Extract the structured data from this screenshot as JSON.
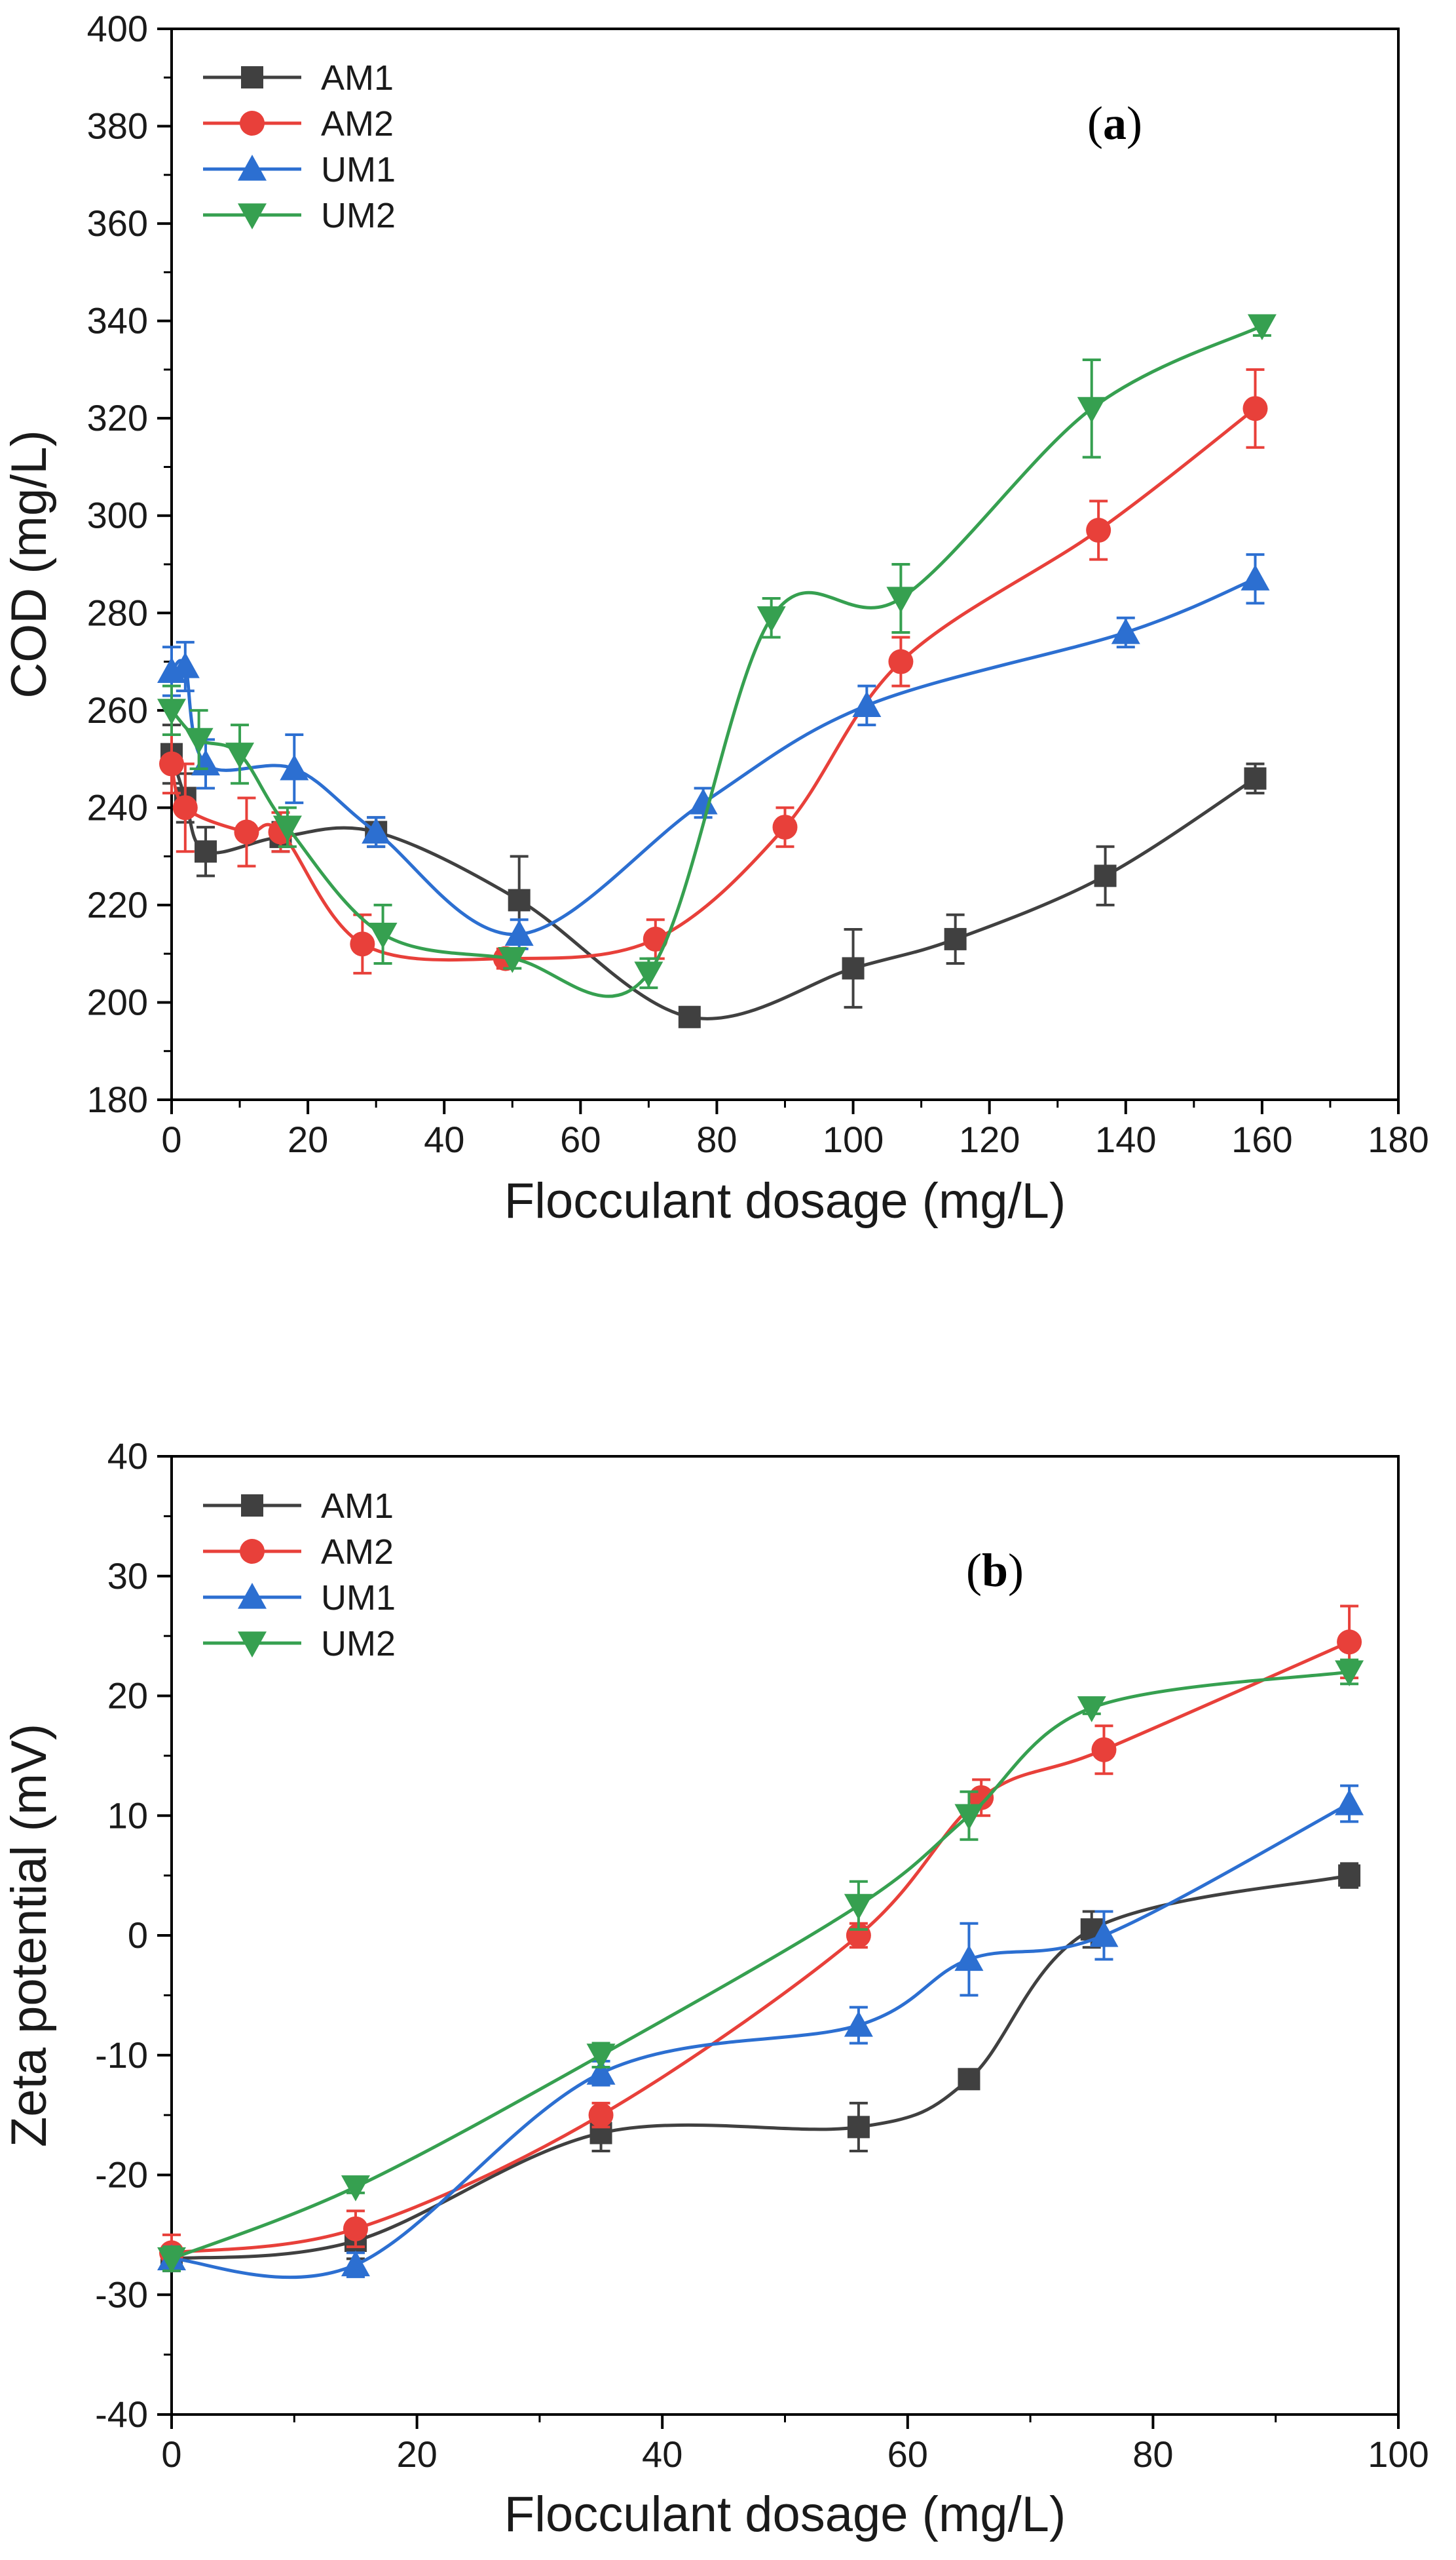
{
  "chart_data": [
    {
      "type": "line",
      "panel_label": "a",
      "xlabel": "Flocculant dosage (mg/L)",
      "ylabel": "COD (mg/L)",
      "xlim": [
        0,
        180
      ],
      "ylim": [
        180,
        400
      ],
      "xticks": [
        "0",
        "20",
        "40",
        "60",
        "80",
        "100",
        "120",
        "140",
        "160",
        "180"
      ],
      "yticks": [
        "180",
        "200",
        "220",
        "240",
        "260",
        "280",
        "300",
        "320",
        "340",
        "360",
        "380",
        "400"
      ],
      "legend_position": "top-left",
      "series": [
        {
          "name": "AM1",
          "color": "#404040",
          "marker": "square",
          "x": [
            0,
            2,
            5,
            16,
            30,
            51,
            76,
            100,
            115,
            137,
            159
          ],
          "y": [
            251,
            242,
            231,
            234,
            235,
            221,
            197,
            207,
            213,
            226,
            246
          ],
          "err": [
            6,
            5,
            5,
            3,
            3,
            9,
            2,
            8,
            5,
            6,
            3
          ]
        },
        {
          "name": "AM2",
          "color": "#e8403a",
          "marker": "circle",
          "x": [
            0,
            2,
            11,
            16,
            28,
            49,
            71,
            90,
            107,
            136,
            159
          ],
          "y": [
            249,
            240,
            235,
            235,
            212,
            209,
            213,
            236,
            270,
            297,
            322
          ],
          "err": [
            6,
            9,
            7,
            4,
            6,
            2,
            4,
            4,
            5,
            6,
            8
          ]
        },
        {
          "name": "UM1",
          "color": "#2c6fd1",
          "marker": "triangle-up",
          "x": [
            0,
            2,
            5,
            18,
            30,
            51,
            78,
            102,
            140,
            159
          ],
          "y": [
            268,
            269,
            249,
            248,
            235,
            214,
            241,
            261,
            276,
            287
          ],
          "err": [
            5,
            5,
            5,
            7,
            3,
            3,
            3,
            4,
            3,
            5
          ]
        },
        {
          "name": "UM2",
          "color": "#36a050",
          "marker": "triangle-down",
          "x": [
            0,
            4,
            10,
            17,
            31,
            50,
            70,
            88,
            107,
            135,
            160
          ],
          "y": [
            260,
            254,
            251,
            236,
            214,
            209,
            206,
            279,
            283,
            322,
            339
          ],
          "err": [
            5,
            6,
            6,
            4,
            6,
            2,
            3,
            4,
            7,
            10,
            2
          ]
        }
      ]
    },
    {
      "type": "line",
      "panel_label": "b",
      "xlabel": "Flocculant dosage (mg/L)",
      "ylabel": "Zeta potential (mV)",
      "xlim": [
        0,
        100
      ],
      "ylim": [
        -40,
        40
      ],
      "xticks": [
        "0",
        "20",
        "40",
        "60",
        "80",
        "100"
      ],
      "yticks": [
        "-40",
        "-30",
        "-20",
        "-10",
        "0",
        "10",
        "20",
        "30",
        "40"
      ],
      "legend_position": "top-left",
      "series": [
        {
          "name": "AM1",
          "color": "#404040",
          "marker": "square",
          "x": [
            0,
            15,
            35,
            56,
            65,
            75,
            96
          ],
          "y": [
            -27,
            -25.5,
            -16.5,
            -16,
            -12,
            0.5,
            5
          ],
          "err": [
            1,
            1.5,
            1.5,
            2,
            0.5,
            1.5,
            1
          ]
        },
        {
          "name": "AM2",
          "color": "#e8403a",
          "marker": "circle",
          "x": [
            0,
            15,
            35,
            56,
            66,
            76,
            96
          ],
          "y": [
            -26.5,
            -24.5,
            -15,
            0,
            11.5,
            15.5,
            24.5
          ],
          "err": [
            1.5,
            1.5,
            1,
            1,
            1.5,
            2,
            3
          ]
        },
        {
          "name": "UM1",
          "color": "#2c6fd1",
          "marker": "triangle-up",
          "x": [
            0,
            15,
            35,
            56,
            65,
            76,
            96
          ],
          "y": [
            -27,
            -27.5,
            -11.5,
            -7.5,
            -2,
            0,
            11
          ],
          "err": [
            1,
            1,
            1,
            1.5,
            3,
            2,
            1.5
          ]
        },
        {
          "name": "UM2",
          "color": "#36a050",
          "marker": "triangle-down",
          "x": [
            0,
            15,
            35,
            56,
            65,
            75,
            96
          ],
          "y": [
            -27,
            -21,
            -10,
            2.5,
            10,
            19,
            22
          ],
          "err": [
            1,
            0.5,
            1,
            2,
            2,
            0.5,
            1
          ]
        }
      ]
    }
  ]
}
